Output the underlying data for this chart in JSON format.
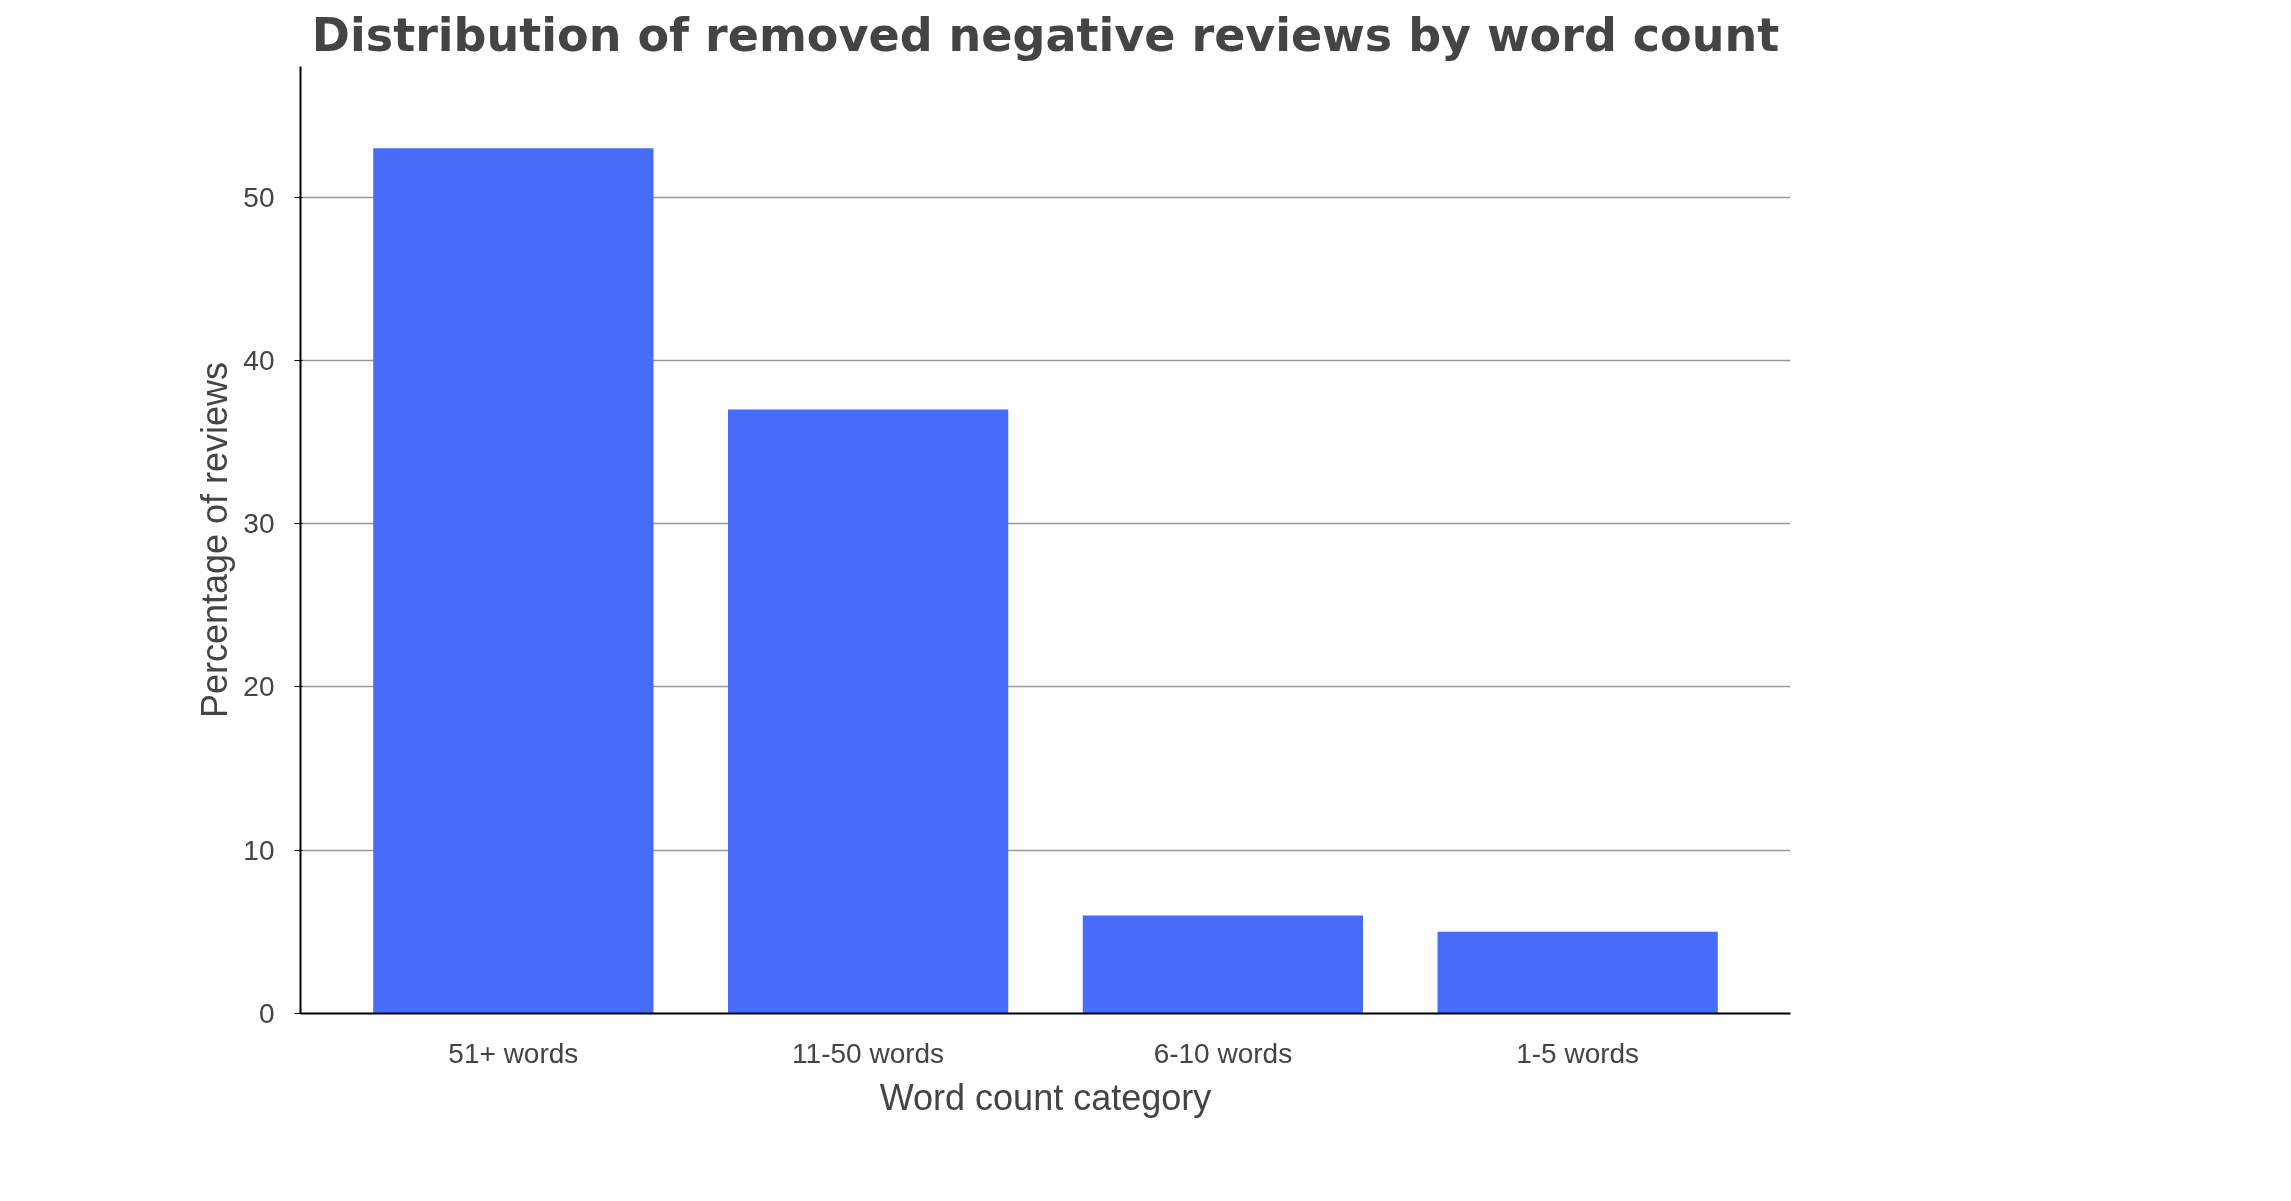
{
  "chart_data": {
    "type": "bar",
    "title": "Distribution of removed negative reviews by word count",
    "xlabel": "Word count category",
    "ylabel": "Percentage of reviews",
    "categories": [
      "51+ words",
      "11-50 words",
      "6-10 words",
      "1-5 words"
    ],
    "values": [
      53,
      37,
      6,
      5
    ],
    "color": "#476cfa",
    "ylim": [
      0,
      58
    ],
    "yticks": [
      0,
      10,
      20,
      30,
      40,
      50
    ],
    "grid": "y"
  }
}
